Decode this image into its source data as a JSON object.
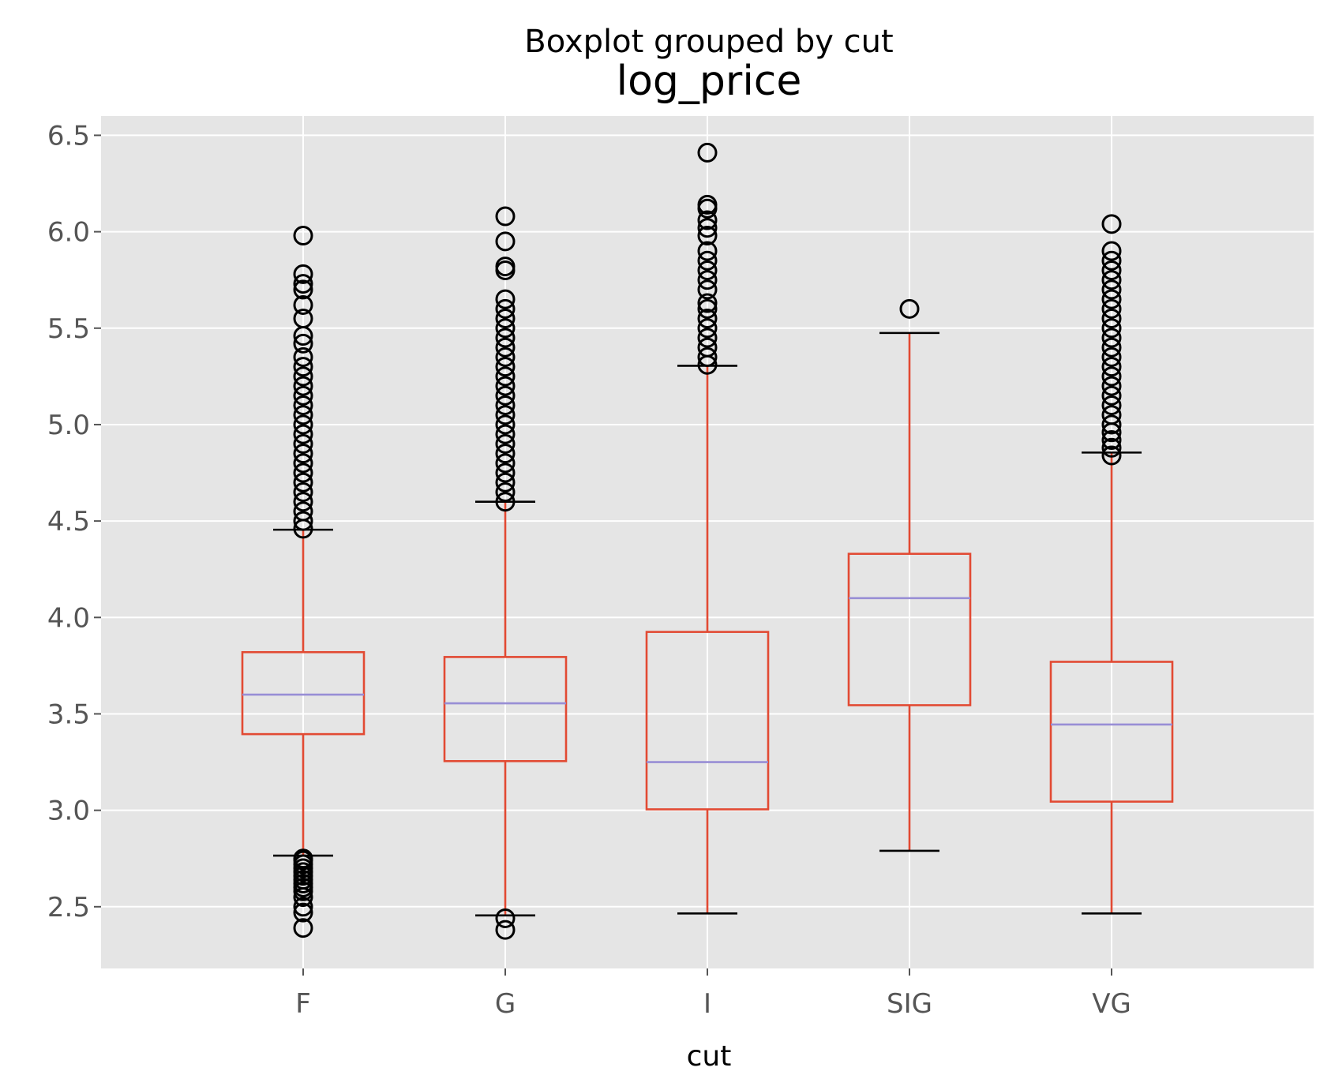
{
  "chart_data": {
    "type": "boxplot",
    "suptitle": "Boxplot grouped by cut",
    "title": "log_price",
    "xlabel": "cut",
    "ylabel": "",
    "ylim": [
      2.18,
      6.6
    ],
    "yticks": [
      "2.5",
      "3.0",
      "3.5",
      "4.0",
      "4.5",
      "5.0",
      "5.5",
      "6.0",
      "6.5"
    ],
    "grid": true,
    "categories": [
      "F",
      "G",
      "I",
      "SIG",
      "VG"
    ],
    "boxes": [
      {
        "category": "F",
        "whisker_low": 2.765,
        "q1": 3.395,
        "median": 3.6,
        "q3": 3.82,
        "whisker_high": 4.455,
        "outliers": [
          2.39,
          2.47,
          2.5,
          2.55,
          2.58,
          2.6,
          2.62,
          2.64,
          2.66,
          2.68,
          2.7,
          2.72,
          2.74,
          2.75,
          4.46,
          4.5,
          4.55,
          4.6,
          4.65,
          4.7,
          4.75,
          4.8,
          4.85,
          4.9,
          4.95,
          5.0,
          5.05,
          5.1,
          5.15,
          5.2,
          5.25,
          5.3,
          5.35,
          5.42,
          5.46,
          5.55,
          5.62,
          5.7,
          5.73,
          5.78,
          5.98
        ]
      },
      {
        "category": "G",
        "whisker_low": 2.455,
        "q1": 3.255,
        "median": 3.555,
        "q3": 3.795,
        "whisker_high": 4.6,
        "outliers": [
          2.38,
          2.44,
          4.6,
          4.65,
          4.7,
          4.75,
          4.8,
          4.85,
          4.9,
          4.95,
          5.0,
          5.05,
          5.1,
          5.15,
          5.2,
          5.25,
          5.3,
          5.35,
          5.4,
          5.45,
          5.5,
          5.55,
          5.6,
          5.65,
          5.8,
          5.82,
          5.95,
          6.08
        ]
      },
      {
        "category": "I",
        "whisker_low": 2.465,
        "q1": 3.005,
        "median": 3.25,
        "q3": 3.925,
        "whisker_high": 5.305,
        "outliers": [
          5.31,
          5.35,
          5.4,
          5.45,
          5.5,
          5.55,
          5.6,
          5.63,
          5.7,
          5.75,
          5.8,
          5.85,
          5.9,
          5.98,
          6.02,
          6.06,
          6.12,
          6.14,
          6.41
        ]
      },
      {
        "category": "SIG",
        "whisker_low": 2.79,
        "q1": 3.545,
        "median": 4.1,
        "q3": 4.33,
        "whisker_high": 5.475,
        "outliers": [
          5.6
        ]
      },
      {
        "category": "VG",
        "whisker_low": 2.465,
        "q1": 3.045,
        "median": 3.445,
        "q3": 3.77,
        "whisker_high": 4.855,
        "outliers": [
          4.84,
          4.88,
          4.92,
          4.96,
          5.0,
          5.05,
          5.1,
          5.15,
          5.2,
          5.25,
          5.3,
          5.35,
          5.4,
          5.45,
          5.5,
          5.55,
          5.6,
          5.65,
          5.7,
          5.75,
          5.8,
          5.85,
          5.9,
          6.04
        ]
      }
    ],
    "colors": {
      "background": "#e5e5e5",
      "grid": "#ffffff",
      "box": "#e24a33",
      "median": "#988ed5",
      "whisker_cap": "#000000",
      "flier": "#000000"
    }
  }
}
